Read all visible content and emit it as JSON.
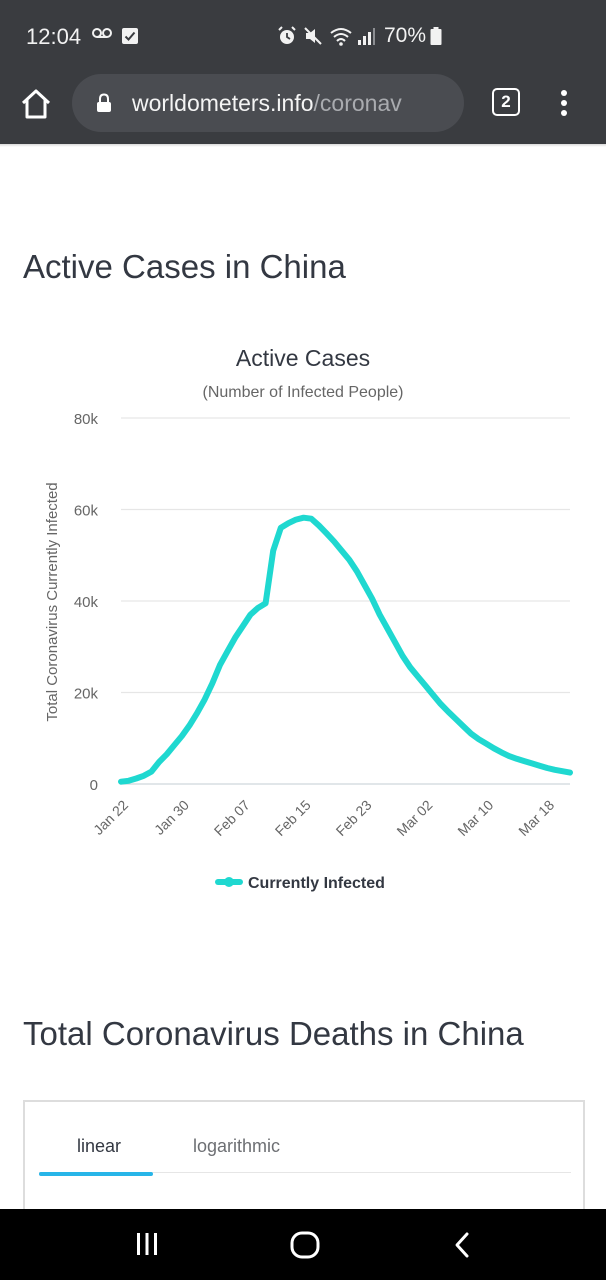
{
  "status_bar": {
    "time": "12:04",
    "battery": "70%",
    "icons": [
      "voicemail-icon",
      "check-box-icon",
      "alarm-icon",
      "mute-icon",
      "wifi-icon",
      "signal-icon",
      "battery-icon"
    ]
  },
  "browser": {
    "url_domain": "worldometers.info",
    "url_path": "/coronav",
    "tab_count": "2"
  },
  "section1": {
    "heading": "Active Cases in China"
  },
  "chart_data": {
    "type": "line",
    "title": "Active Cases",
    "subtitle": "(Number of Infected People)",
    "ylabel": "Total Coronavirus Currently Infected",
    "xlabel": "",
    "ylim": [
      0,
      80000
    ],
    "y_ticks": [
      "0",
      "20k",
      "40k",
      "60k",
      "80k"
    ],
    "y_tick_values": [
      0,
      20000,
      40000,
      60000,
      80000
    ],
    "x_ticks": [
      "Jan 22",
      "Jan 30",
      "Feb 07",
      "Feb 15",
      "Feb 23",
      "Mar 02",
      "Mar 10",
      "Mar 18"
    ],
    "x_tick_days": [
      0,
      8,
      16,
      24,
      32,
      40,
      48,
      56
    ],
    "legend_position": "bottom",
    "grid": true,
    "series": [
      {
        "name": "Currently Infected",
        "color": "#1fd8d0",
        "x_days": [
          0,
          1,
          2,
          3,
          4,
          5,
          6,
          7,
          8,
          9,
          10,
          11,
          12,
          13,
          14,
          15,
          16,
          17,
          18,
          19,
          20,
          21,
          22,
          23,
          24,
          25,
          26,
          27,
          28,
          29,
          30,
          31,
          32,
          33,
          34,
          35,
          36,
          37,
          38,
          39,
          40,
          41,
          42,
          43,
          44,
          45,
          46,
          47,
          48,
          49,
          50,
          51,
          52,
          53,
          54,
          55,
          56,
          57,
          58,
          59
        ],
        "values": [
          500,
          700,
          1200,
          1800,
          2700,
          4800,
          6500,
          8500,
          10500,
          12800,
          15500,
          18500,
          22000,
          26000,
          29000,
          32000,
          34500,
          37000,
          38500,
          39500,
          51000,
          56000,
          57000,
          57800,
          58200,
          58000,
          56500,
          54800,
          53000,
          51000,
          49000,
          46500,
          43500,
          40500,
          37000,
          34000,
          31000,
          28000,
          25500,
          23500,
          21500,
          19500,
          17500,
          15800,
          14200,
          12600,
          11000,
          9800,
          8800,
          7800,
          6900,
          6100,
          5500,
          5000,
          4500,
          4000,
          3500,
          3100,
          2800,
          2500
        ]
      }
    ]
  },
  "section2": {
    "heading": "Total Coronavirus Deaths in China",
    "tabs": [
      "linear",
      "logarithmic"
    ],
    "active_tab": "linear"
  }
}
